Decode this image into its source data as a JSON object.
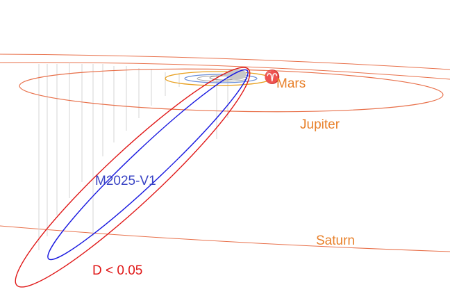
{
  "planets": [
    "Mars",
    "Jupiter",
    "Saturn"
  ],
  "equinox_symbol": "♈",
  "comet": {
    "name": "M2025-V1",
    "uncertainty": "D < 0.05"
  }
}
